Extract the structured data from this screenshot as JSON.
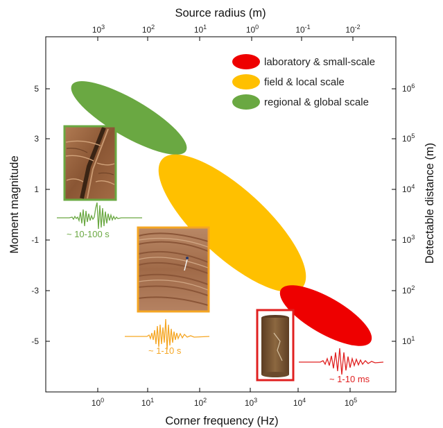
{
  "top_axis": {
    "title": "Source radius (m)",
    "ticks": [
      {
        "base": "10",
        "exp": "3"
      },
      {
        "base": "10",
        "exp": "2"
      },
      {
        "base": "10",
        "exp": "1"
      },
      {
        "base": "10",
        "exp": "0"
      },
      {
        "base": "10",
        "exp": "-1"
      },
      {
        "base": "10",
        "exp": "-2"
      }
    ]
  },
  "bottom_axis": {
    "title": "Corner frequency (Hz)",
    "ticks": [
      {
        "base": "10",
        "exp": "0"
      },
      {
        "base": "10",
        "exp": "1"
      },
      {
        "base": "10",
        "exp": "2"
      },
      {
        "base": "10",
        "exp": "3"
      },
      {
        "base": "10",
        "exp": "4"
      },
      {
        "base": "10",
        "exp": "5"
      }
    ]
  },
  "left_axis": {
    "title": "Moment magnitude",
    "ticks": [
      "5",
      "3",
      "1",
      "-1",
      "-3",
      "-5"
    ]
  },
  "right_axis": {
    "title": "Detectable distance (m)",
    "ticks": [
      {
        "base": "10",
        "exp": "6"
      },
      {
        "base": "10",
        "exp": "5"
      },
      {
        "base": "10",
        "exp": "4"
      },
      {
        "base": "10",
        "exp": "3"
      },
      {
        "base": "10",
        "exp": "2"
      },
      {
        "base": "10",
        "exp": "1"
      }
    ]
  },
  "legend": [
    {
      "label": "laboratory & small-scale",
      "color": "#ee0000"
    },
    {
      "label": "field & local scale",
      "color": "#ffc000"
    },
    {
      "label": "regional & global scale",
      "color": "#6aa842"
    }
  ],
  "durations": [
    {
      "label": "~ 10-100 s",
      "color": "#6aa842"
    },
    {
      "label": "~ 1-10 s",
      "color": "#f5a623"
    },
    {
      "label": "~ 1-10 ms",
      "color": "#e02020"
    }
  ],
  "photos": [
    {
      "subject": "fault-scarp-photo",
      "border": "#6aa842"
    },
    {
      "subject": "outcrop-photo",
      "border": "#f5a623"
    },
    {
      "subject": "rock-core-photo",
      "border": "#e02020"
    }
  ]
}
